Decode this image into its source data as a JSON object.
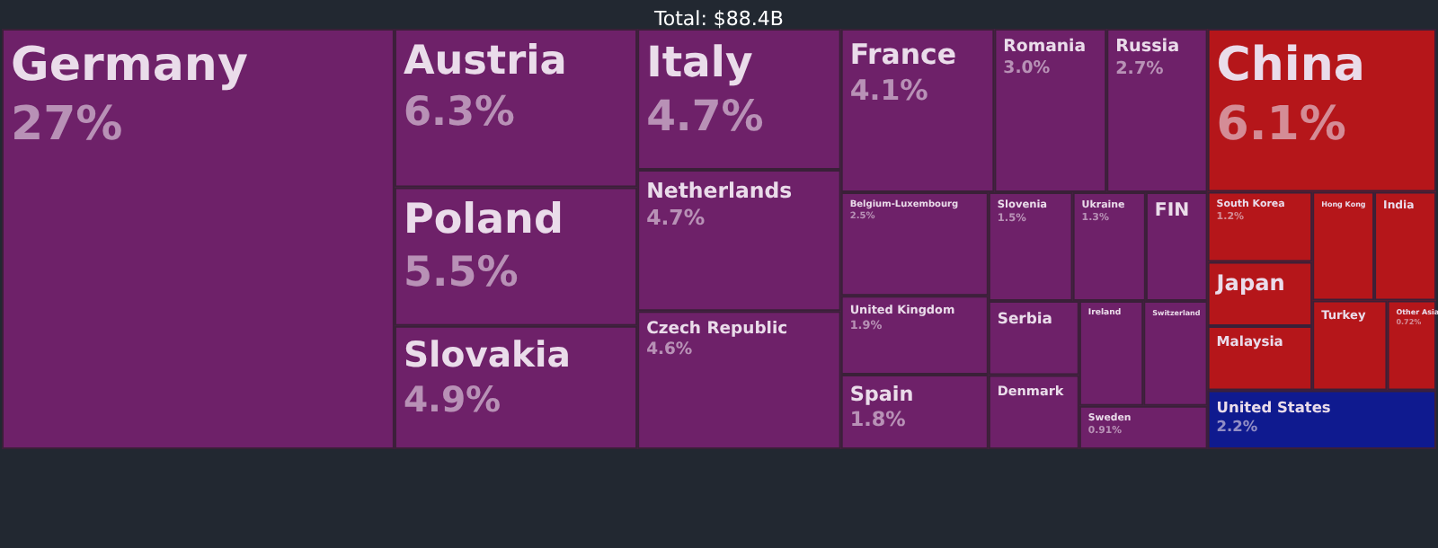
{
  "chart_data": {
    "type": "other",
    "title": "Total: $88.4B",
    "categories": [
      "Germany",
      "Austria",
      "Poland",
      "Slovakia",
      "Netherlands",
      "Italy",
      "Czech Republic",
      "France",
      "Romania",
      "Russia",
      "Belgium-Luxembourg",
      "Slovenia",
      "Ukraine",
      "Sweden",
      "United Kingdom",
      "Spain",
      "Switzerland",
      "Ireland",
      "Denmark",
      "Serbia",
      "FIN",
      "China",
      "South Korea",
      "Other Asia",
      "Turkey",
      "India",
      "Hong Kong",
      "Malaysia",
      "Japan",
      "United States"
    ],
    "values": [
      27,
      6.3,
      5.5,
      4.9,
      4.7,
      4.7,
      4.6,
      4.1,
      3.0,
      2.7,
      2.5,
      1.5,
      1.3,
      0.91,
      1.9,
      1.8,
      null,
      null,
      null,
      null,
      null,
      6.1,
      1.2,
      0.72,
      null,
      null,
      null,
      null,
      null,
      2.2
    ],
    "value_labels": [
      "27%",
      "6.3%",
      "5.5%",
      "4.9%",
      "4.7%",
      "4.7%",
      "4.6%",
      "4.1%",
      "3.0%",
      "2.7%",
      "2.5%",
      "1.5%",
      "1.3%",
      "0.91%",
      "1.9%",
      "1.8%",
      null,
      null,
      null,
      null,
      null,
      "6.1%",
      "1.2%",
      "0.72%",
      null,
      null,
      null,
      null,
      null,
      "2.2%"
    ],
    "colors": [
      "#6e2169",
      "#6e2169",
      "#6e2169",
      "#6e2169",
      "#6e2169",
      "#6e2169",
      "#6e2169",
      "#6e2169",
      "#6e2169",
      "#6e2169",
      "#6e2169",
      "#6e2169",
      "#6e2169",
      "#6e2169",
      "#6e2169",
      "#6e2169",
      "#6e2169",
      "#6e2169",
      "#6e2169",
      "#6e2169",
      "#6e2169",
      "#b5161a",
      "#b5161a",
      "#b5161a",
      "#b5161a",
      "#b5161a",
      "#b5161a",
      "#b5161a",
      "#b5161a",
      "#0f1a8f"
    ]
  }
}
